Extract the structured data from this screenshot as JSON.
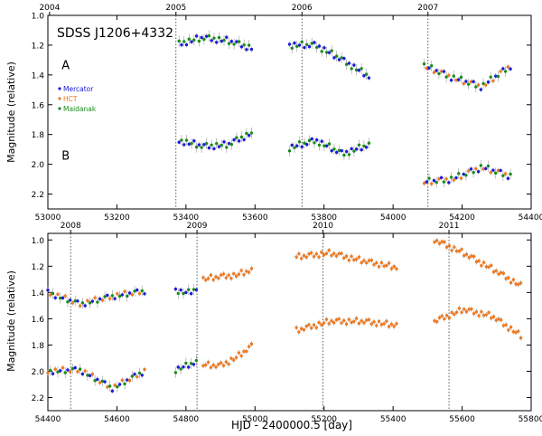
{
  "colors": {
    "mercator": "#1a1adb",
    "hct": "#ee7a22",
    "maidanak": "#1a8c1a",
    "errorbar": "#9a9a9a",
    "axis": "#000000",
    "dotted": "#333333"
  },
  "chart_data": [
    {
      "id": "top",
      "type": "scatter",
      "title": "SDSS J1206+4332",
      "ylabel": "Magnitude (relative)",
      "xlim": [
        53000,
        54400
      ],
      "ylim": [
        2.3,
        1.0
      ],
      "xticks": [
        53000,
        53200,
        53400,
        53600,
        53800,
        54000,
        54200,
        54400
      ],
      "yticks": [
        "1.0",
        "1.2",
        "1.4",
        "1.6",
        "1.8",
        "2.0",
        "2.2"
      ],
      "year_ticks": [
        {
          "label": "2004",
          "x": 53005
        },
        {
          "label": "2005",
          "x": 53371
        },
        {
          "label": "2006",
          "x": 53736
        },
        {
          "label": "2007",
          "x": 54101
        }
      ],
      "image_labels": [
        {
          "label": "A",
          "x": 53040,
          "y": 1.36
        },
        {
          "label": "B",
          "x": 53040,
          "y": 1.97
        }
      ],
      "legend": [
        {
          "label": "Mercator",
          "series": "mercator"
        },
        {
          "label": "HCT",
          "series": "hct"
        },
        {
          "label": "Maidanak",
          "series": "maidanak"
        }
      ],
      "seasons": [
        {
          "image": "A",
          "x0": 53380,
          "x1": 53590,
          "y": [
            1.19,
            1.15,
            1.17,
            1.22
          ],
          "series": [
            "maidanak",
            "mercator"
          ]
        },
        {
          "image": "B",
          "x0": 53380,
          "x1": 53590,
          "y": [
            1.84,
            1.88,
            1.87,
            1.79
          ],
          "series": [
            "maidanak",
            "mercator"
          ]
        },
        {
          "image": "A",
          "x0": 53700,
          "x1": 53930,
          "y": [
            1.2,
            1.2,
            1.3,
            1.41
          ],
          "series": [
            "mercator",
            "maidanak"
          ]
        },
        {
          "image": "B",
          "x0": 53700,
          "x1": 53930,
          "y": [
            1.89,
            1.84,
            1.93,
            1.87
          ],
          "series": [
            "mercator",
            "maidanak"
          ]
        },
        {
          "image": "A",
          "x0": 54090,
          "x1": 54340,
          "y": [
            1.34,
            1.42,
            1.48,
            1.34
          ],
          "series": [
            "mercator",
            "maidanak",
            "hct"
          ]
        },
        {
          "image": "B",
          "x0": 54090,
          "x1": 54340,
          "y": [
            2.12,
            2.1,
            2.02,
            2.08
          ],
          "series": [
            "mercator",
            "maidanak",
            "hct"
          ]
        }
      ]
    },
    {
      "id": "bottom",
      "type": "scatter",
      "ylabel": "Magnitude (relative)",
      "xlabel": "HJD - 2400000.5 [day]",
      "xlim": [
        54400,
        55800
      ],
      "ylim": [
        2.3,
        0.95
      ],
      "xticks": [
        54400,
        54600,
        54800,
        55000,
        55200,
        55400,
        55600,
        55800
      ],
      "yticks": [
        "1.0",
        "1.2",
        "1.4",
        "1.6",
        "1.8",
        "2.0",
        "2.2"
      ],
      "year_ticks": [
        {
          "label": "2008",
          "x": 54466
        },
        {
          "label": "2009",
          "x": 54832
        },
        {
          "label": "2010",
          "x": 55197
        },
        {
          "label": "2011",
          "x": 55562
        }
      ],
      "seasons": [
        {
          "image": "A",
          "x0": 54400,
          "x1": 54680,
          "y": [
            1.4,
            1.49,
            1.43,
            1.39
          ],
          "series": [
            "mercator",
            "hct",
            "maidanak"
          ]
        },
        {
          "image": "B",
          "x0": 54400,
          "x1": 54680,
          "y": [
            2.0,
            1.99,
            2.13,
            2.0
          ],
          "series": [
            "mercator",
            "hct",
            "maidanak"
          ]
        },
        {
          "image": "A",
          "x0": 54770,
          "x1": 54830,
          "y": [
            1.38,
            1.4,
            1.4,
            1.37
          ],
          "series": [
            "mercator",
            "maidanak"
          ]
        },
        {
          "image": "B",
          "x0": 54770,
          "x1": 54830,
          "y": [
            1.99,
            1.97,
            1.95,
            1.93
          ],
          "series": [
            "mercator",
            "maidanak"
          ]
        },
        {
          "image": "A",
          "x0": 54850,
          "x1": 54990,
          "y": [
            1.3,
            1.28,
            1.27,
            1.23
          ],
          "series": [
            "hct"
          ]
        },
        {
          "image": "B",
          "x0": 54850,
          "x1": 54990,
          "y": [
            1.95,
            1.96,
            1.9,
            1.81
          ],
          "series": [
            "hct"
          ]
        },
        {
          "image": "A",
          "x0": 55120,
          "x1": 55410,
          "y": [
            1.13,
            1.1,
            1.16,
            1.21
          ],
          "series": [
            "hct"
          ]
        },
        {
          "image": "B",
          "x0": 55120,
          "x1": 55410,
          "y": [
            1.69,
            1.62,
            1.62,
            1.65
          ],
          "series": [
            "hct"
          ]
        },
        {
          "image": "A",
          "x0": 55520,
          "x1": 55770,
          "y": [
            1.0,
            1.1,
            1.22,
            1.35
          ],
          "series": [
            "hct"
          ]
        },
        {
          "image": "B",
          "x0": 55520,
          "x1": 55770,
          "y": [
            1.62,
            1.53,
            1.58,
            1.73
          ],
          "series": [
            "hct"
          ]
        }
      ]
    }
  ]
}
